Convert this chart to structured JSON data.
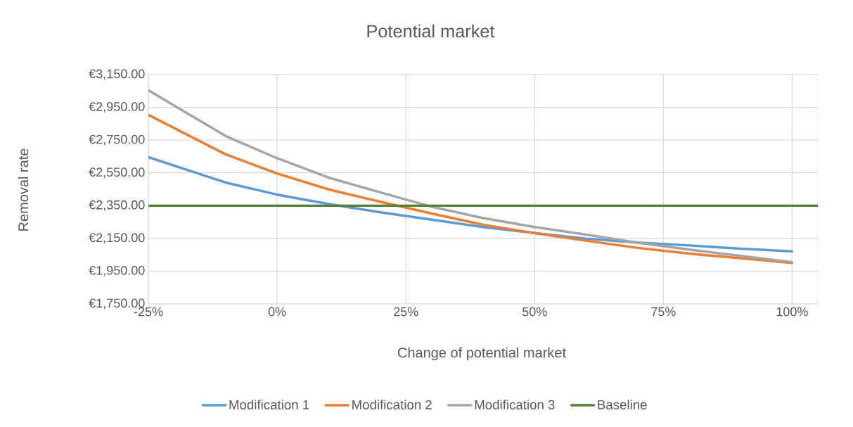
{
  "chart_data": {
    "type": "line",
    "title": "Potential market",
    "xlabel": "Change of potential market",
    "ylabel": "Removal rate",
    "x": [
      -25,
      -10,
      0,
      10,
      20,
      30,
      40,
      50,
      60,
      70,
      80,
      90,
      100
    ],
    "series": [
      {
        "name": "Modification 1",
        "color": "#5b9bd5",
        "values": [
          2646,
          2491,
          2417,
          2360,
          2309,
          2264,
          2219,
          2183,
          2148,
          2125,
          2107,
          2087,
          2071
        ]
      },
      {
        "name": "Modification 2",
        "color": "#ed7d31",
        "values": [
          2904,
          2663,
          2546,
          2449,
          2374,
          2302,
          2233,
          2182,
          2136,
          2092,
          2057,
          2029,
          2000
        ]
      },
      {
        "name": "Modification 3",
        "color": "#a5a5a5",
        "values": [
          3054,
          2775,
          2639,
          2521,
          2431,
          2343,
          2274,
          2219,
          2173,
          2124,
          2082,
          2043,
          2005
        ]
      },
      {
        "name": "Baseline",
        "color": "#548235",
        "x": [
          -25,
          105
        ],
        "values": [
          2350,
          2350
        ]
      }
    ],
    "xlim": [
      -25,
      105
    ],
    "ylim": [
      1750,
      3150
    ],
    "xticks": [
      {
        "value": -25,
        "label": "-25%"
      },
      {
        "value": 0,
        "label": "0%"
      },
      {
        "value": 25,
        "label": "25%"
      },
      {
        "value": 50,
        "label": "50%"
      },
      {
        "value": 75,
        "label": "75%"
      },
      {
        "value": 100,
        "label": "100%"
      }
    ],
    "yticks": [
      {
        "value": 1750,
        "label": "€1,750.00"
      },
      {
        "value": 1950,
        "label": "€1,950.00"
      },
      {
        "value": 2150,
        "label": "€2,150.00"
      },
      {
        "value": 2350,
        "label": "€2,350.00"
      },
      {
        "value": 2550,
        "label": "€2,550.00"
      },
      {
        "value": 2750,
        "label": "€2,750.00"
      },
      {
        "value": 2950,
        "label": "€2,950.00"
      },
      {
        "value": 3150,
        "label": "€3,150.00"
      }
    ],
    "grid": true,
    "legend": "bottom",
    "marker": "none"
  }
}
